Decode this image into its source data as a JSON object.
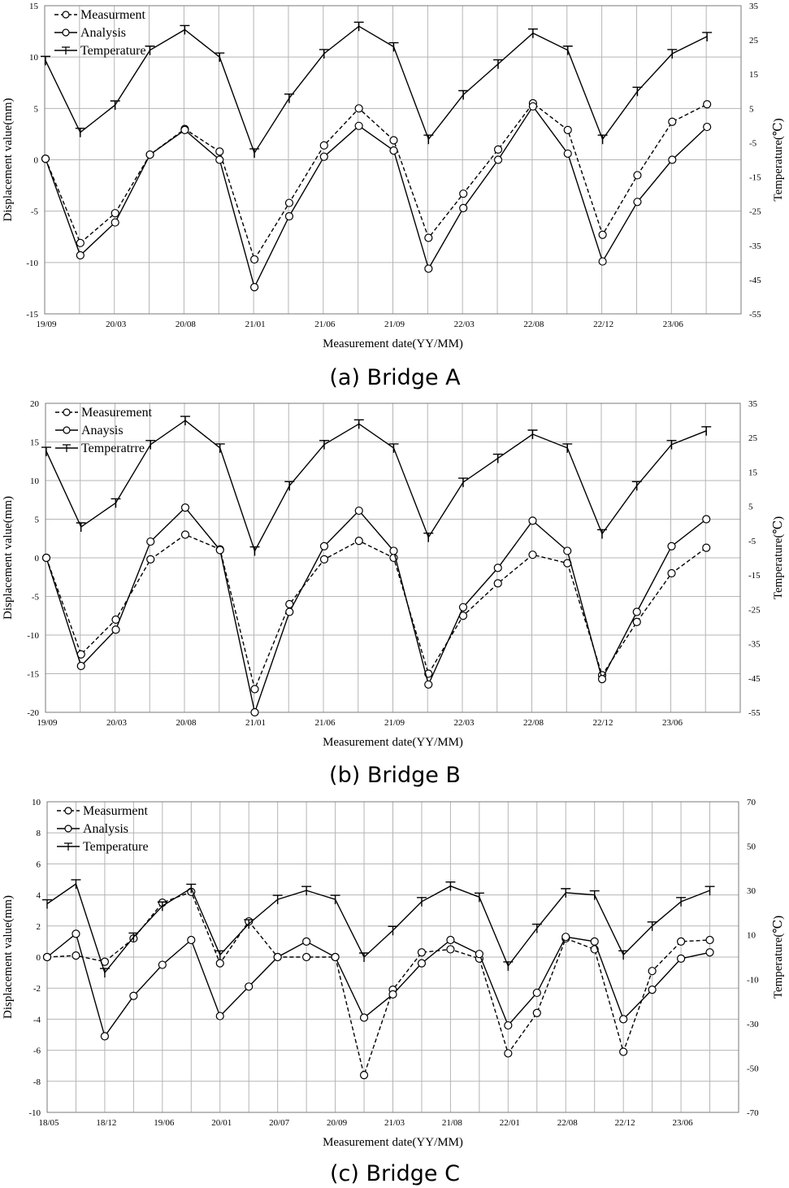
{
  "chart_data": [
    {
      "type": "line",
      "title": "(a) Bridge A",
      "xlabel": "Measurement date(YY/MM)",
      "ylabel": "Displacement value(mm)",
      "y2label": "Temperature(℃)",
      "ylim": [
        -15,
        15
      ],
      "y2lim": [
        -55,
        35
      ],
      "yticks": [
        15,
        10,
        5,
        0,
        -5,
        -10,
        -15
      ],
      "y2ticks": [
        35,
        25,
        15,
        5,
        -5,
        -15,
        -25,
        -35,
        -45,
        -55
      ],
      "x_slots": 20,
      "x_tick_labels": [
        {
          "slot": 0,
          "label": "19/09"
        },
        {
          "slot": 2,
          "label": "20/03"
        },
        {
          "slot": 4,
          "label": "20/08"
        },
        {
          "slot": 6,
          "label": "21/01"
        },
        {
          "slot": 8,
          "label": "21/06"
        },
        {
          "slot": 10,
          "label": "21/09"
        },
        {
          "slot": 12,
          "label": "22/03"
        },
        {
          "slot": 14,
          "label": "22/08"
        },
        {
          "slot": 16,
          "label": "22/12"
        },
        {
          "slot": 18,
          "label": "23/06"
        }
      ],
      "legend_position": "top-left",
      "series": [
        {
          "name": "Measurment",
          "axis": "left",
          "style": "dashed",
          "marker": "circle",
          "x": [
            0,
            1,
            2,
            3,
            4,
            5,
            6,
            7,
            8,
            9,
            10,
            11,
            12,
            13,
            14,
            15,
            16,
            17,
            18,
            19
          ],
          "values": [
            0.1,
            -8.1,
            -5.2,
            0.5,
            3.0,
            0.8,
            -9.7,
            -4.2,
            1.4,
            5.0,
            1.9,
            -7.6,
            -3.3,
            1.0,
            5.5,
            2.9,
            -7.3,
            -1.5,
            3.7,
            5.4
          ]
        },
        {
          "name": "Analysis",
          "axis": "left",
          "style": "solid",
          "marker": "circle",
          "x": [
            0,
            1,
            2,
            3,
            4,
            5,
            6,
            7,
            8,
            9,
            10,
            11,
            12,
            13,
            14,
            15,
            16,
            17,
            18,
            19
          ],
          "values": [
            0.1,
            -9.3,
            -6.1,
            0.5,
            2.9,
            0.0,
            -12.4,
            -5.5,
            0.3,
            3.3,
            0.9,
            -10.6,
            -4.7,
            0.0,
            5.2,
            0.6,
            -9.9,
            -4.1,
            0.0,
            3.2
          ]
        },
        {
          "name": "Temperature",
          "axis": "right",
          "style": "solid",
          "marker": "T",
          "x": [
            0,
            1,
            2,
            3,
            4,
            5,
            6,
            7,
            8,
            9,
            10,
            11,
            12,
            13,
            14,
            15,
            16,
            17,
            18,
            19
          ],
          "values": [
            19,
            -2,
            6,
            22,
            28,
            20,
            -8,
            8,
            21,
            29,
            23,
            -4,
            9,
            18,
            27,
            22,
            -4,
            10,
            21,
            26
          ]
        }
      ]
    },
    {
      "type": "line",
      "title": "(b) Bridge B",
      "xlabel": "Measurement date(YY/MM)",
      "ylabel": "Displacement value(mm)",
      "y2label": "Temperature(℃)",
      "ylim": [
        -20,
        20
      ],
      "y2lim": [
        -55,
        35
      ],
      "yticks": [
        20,
        15,
        10,
        5,
        0,
        -5,
        -10,
        -15,
        -20
      ],
      "y2ticks": [
        35,
        25,
        15,
        5,
        -5,
        -15,
        -25,
        -35,
        -45,
        -55
      ],
      "x_slots": 20,
      "x_tick_labels": [
        {
          "slot": 0,
          "label": "19/09"
        },
        {
          "slot": 2,
          "label": "20/03"
        },
        {
          "slot": 4,
          "label": "20/08"
        },
        {
          "slot": 6,
          "label": "21/01"
        },
        {
          "slot": 8,
          "label": "21/06"
        },
        {
          "slot": 10,
          "label": "21/09"
        },
        {
          "slot": 12,
          "label": "22/03"
        },
        {
          "slot": 14,
          "label": "22/08"
        },
        {
          "slot": 16,
          "label": "22/12"
        },
        {
          "slot": 18,
          "label": "23/06"
        }
      ],
      "legend_position": "top-left",
      "series": [
        {
          "name": "Measurement",
          "axis": "left",
          "style": "dashed",
          "marker": "circle",
          "x": [
            0,
            1,
            2,
            3,
            4,
            5,
            6,
            7,
            8,
            9,
            10,
            11,
            12,
            13,
            14,
            15,
            16,
            17,
            18,
            19
          ],
          "values": [
            0.0,
            -12.5,
            -8.0,
            -0.2,
            3.0,
            1.1,
            -17.0,
            -6.0,
            -0.2,
            2.2,
            0.0,
            -15.0,
            -7.5,
            -3.3,
            0.4,
            -0.7,
            -15.2,
            -8.3,
            -2.0,
            1.3
          ]
        },
        {
          "name": "Anaysis",
          "axis": "left",
          "style": "solid",
          "marker": "circle",
          "x": [
            0,
            1,
            2,
            3,
            4,
            5,
            6,
            7,
            8,
            9,
            10,
            11,
            12,
            13,
            14,
            15,
            16,
            17,
            18,
            19
          ],
          "values": [
            0.0,
            -14.0,
            -9.3,
            2.1,
            6.5,
            1.0,
            -20.0,
            -7.0,
            1.5,
            6.1,
            0.9,
            -16.4,
            -6.4,
            -1.3,
            4.8,
            0.9,
            -15.7,
            -7.0,
            1.5,
            5.0
          ]
        },
        {
          "name": "Temperatrre",
          "axis": "right",
          "style": "solid",
          "marker": "T",
          "x": [
            0,
            1,
            2,
            3,
            4,
            5,
            6,
            7,
            8,
            9,
            10,
            11,
            12,
            13,
            14,
            15,
            16,
            17,
            18,
            19
          ],
          "values": [
            21,
            -1,
            6,
            23,
            30,
            22,
            -8,
            11,
            23,
            29,
            22,
            -4,
            12,
            19,
            26,
            22,
            -3,
            11,
            23,
            27
          ]
        }
      ]
    },
    {
      "type": "line",
      "title": "(c) Bridge C",
      "xlabel": "Measurement date(YY/MM)",
      "ylabel": "Displacement value(mm)",
      "y2label": "Temperature(℃)",
      "ylim": [
        -10,
        10
      ],
      "y2lim": [
        -70,
        70
      ],
      "yticks": [
        10,
        8,
        6,
        4,
        2,
        0,
        -2,
        -4,
        -6,
        -8,
        -10
      ],
      "y2ticks": [
        70,
        50,
        30,
        10,
        -10,
        -30,
        -50,
        -70
      ],
      "x_slots": 24,
      "x_tick_labels": [
        {
          "slot": 0,
          "label": "18/05"
        },
        {
          "slot": 2,
          "label": "18/12"
        },
        {
          "slot": 4,
          "label": "19/06"
        },
        {
          "slot": 6,
          "label": "20/01"
        },
        {
          "slot": 8,
          "label": "20/07"
        },
        {
          "slot": 10,
          "label": "20/09"
        },
        {
          "slot": 12,
          "label": "21/03"
        },
        {
          "slot": 14,
          "label": "21/08"
        },
        {
          "slot": 16,
          "label": "22/01"
        },
        {
          "slot": 18,
          "label": "22/08"
        },
        {
          "slot": 20,
          "label": "22/12"
        },
        {
          "slot": 22,
          "label": "23/06"
        }
      ],
      "legend_position": "top-left",
      "series": [
        {
          "name": "Measurment",
          "axis": "left",
          "style": "dashed",
          "marker": "circle",
          "x": [
            0,
            1,
            2,
            3,
            4,
            5,
            6,
            7,
            8,
            9,
            10,
            11,
            12,
            13,
            14,
            15,
            16,
            17,
            18,
            19,
            20,
            21,
            22,
            23
          ],
          "values": [
            0.0,
            0.1,
            -0.3,
            1.2,
            3.5,
            4.2,
            -0.4,
            2.3,
            0.0,
            0.0,
            0.0,
            -7.6,
            -2.1,
            0.3,
            0.5,
            -0.1,
            -6.2,
            -3.6,
            1.2,
            0.5,
            -6.1,
            -0.9,
            1.0,
            1.1
          ]
        },
        {
          "name": "Analysis",
          "axis": "left",
          "style": "solid",
          "marker": "circle",
          "x": [
            0,
            1,
            2,
            3,
            4,
            5,
            6,
            7,
            8,
            9,
            10,
            11,
            12,
            13,
            14,
            15,
            16,
            17,
            18,
            19,
            20,
            21,
            22,
            23
          ],
          "values": [
            0.0,
            1.5,
            -5.1,
            -2.5,
            -0.5,
            1.1,
            -3.8,
            -1.9,
            0.0,
            1.0,
            0.0,
            -3.9,
            -2.4,
            -0.4,
            1.1,
            0.2,
            -4.4,
            -2.3,
            1.3,
            1.0,
            -4.0,
            -2.1,
            -0.1,
            0.3
          ]
        },
        {
          "name": "Temperature",
          "axis": "right",
          "style": "solid",
          "marker": "T",
          "x": [
            0,
            1,
            2,
            3,
            4,
            5,
            6,
            7,
            8,
            9,
            10,
            11,
            12,
            13,
            14,
            15,
            16,
            17,
            18,
            19,
            20,
            21,
            22,
            23
          ],
          "values": [
            24,
            33,
            -7,
            9,
            23,
            31,
            1,
            15,
            26,
            30,
            26,
            0,
            12,
            25,
            32,
            27,
            -4,
            13,
            29,
            28,
            1,
            14,
            25,
            30
          ]
        }
      ]
    }
  ]
}
